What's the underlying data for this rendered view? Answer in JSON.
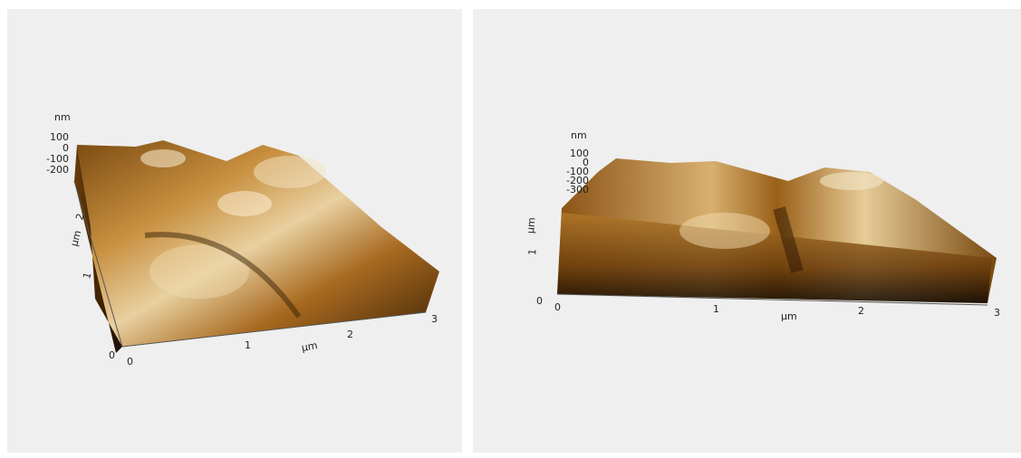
{
  "panels": [
    {
      "z_axis": {
        "unit": "nm",
        "ticks": [
          "100",
          "0",
          "-100",
          "-200"
        ]
      },
      "y_axis": {
        "unit": "µm",
        "ticks": [
          "0",
          "1",
          "2"
        ]
      },
      "x_axis": {
        "unit": "µm",
        "ticks": [
          "0",
          "1",
          "2",
          "3"
        ]
      }
    },
    {
      "z_axis": {
        "unit": "nm",
        "ticks": [
          "100",
          "0",
          "-100",
          "-200",
          "-300"
        ]
      },
      "y_axis": {
        "unit": "µm",
        "ticks": [
          "0",
          "1"
        ]
      },
      "x_axis": {
        "unit": "µm",
        "ticks": [
          "0",
          "1",
          "2",
          "3"
        ]
      }
    }
  ]
}
